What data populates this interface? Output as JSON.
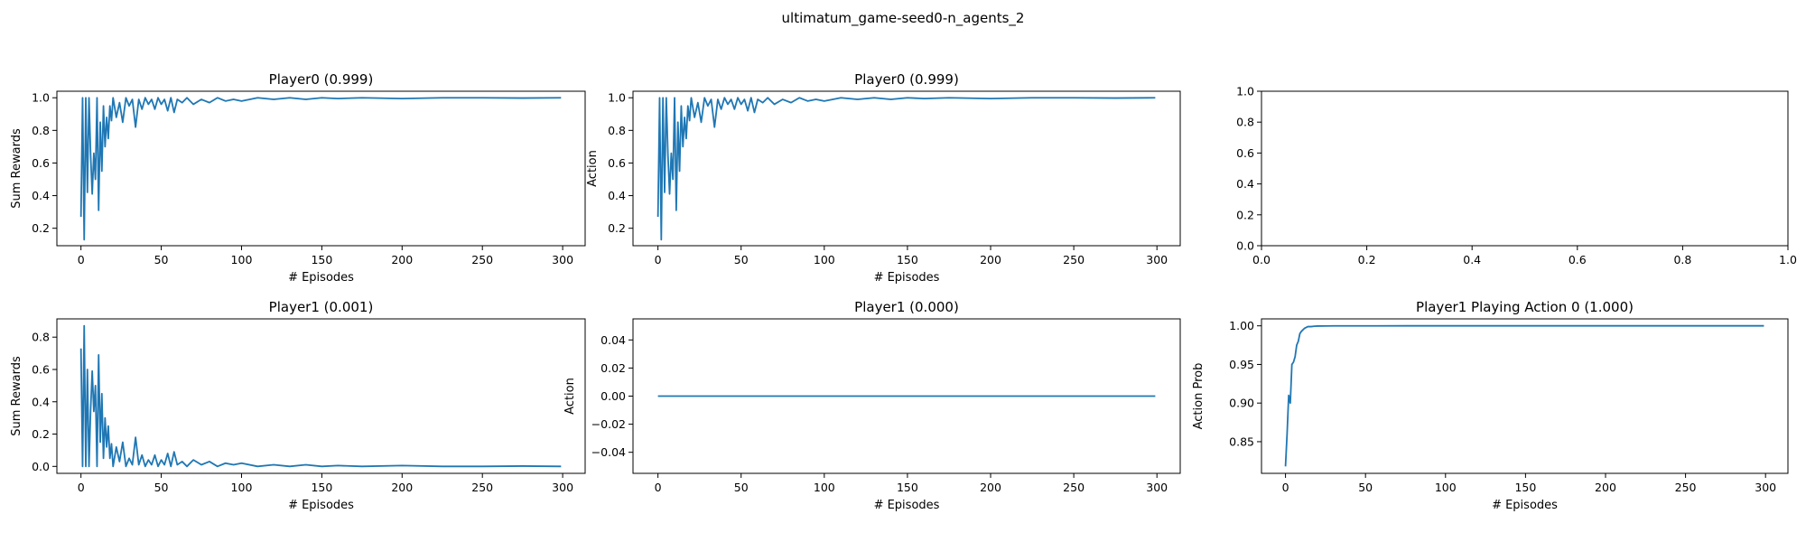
{
  "figure_title": "ultimatum_game-seed0-n_agents_2",
  "colors": {
    "series": "#1f77b4"
  },
  "chart_data": [
    {
      "id": "p0-rewards",
      "type": "line",
      "title": "Player0 (0.999)",
      "xlabel": "# Episodes",
      "ylabel": "Sum Rewards",
      "xlim": [
        -15,
        314
      ],
      "ylim": [
        0.093,
        1.04
      ],
      "xticks": [
        0,
        50,
        100,
        150,
        200,
        250,
        300
      ],
      "yticks": [
        0.2,
        0.4,
        0.6,
        0.8,
        1.0
      ],
      "ytick_labels": [
        "0.2",
        "0.4",
        "0.6",
        "0.8",
        "1.0"
      ],
      "grid": false,
      "series": [
        {
          "x": [
            0,
            1,
            2,
            3,
            4,
            5,
            6,
            7,
            8,
            9,
            10,
            11,
            12,
            13,
            14,
            15,
            16,
            17,
            18,
            19,
            20,
            22,
            24,
            26,
            28,
            30,
            32,
            34,
            36,
            38,
            40,
            42,
            44,
            46,
            48,
            50,
            52,
            54,
            56,
            58,
            60,
            63,
            66,
            70,
            75,
            80,
            85,
            90,
            95,
            100,
            110,
            120,
            130,
            140,
            150,
            160,
            175,
            200,
            225,
            250,
            275,
            299
          ],
          "y": [
            0.27,
            1.0,
            0.13,
            1.0,
            0.42,
            1.0,
            0.65,
            0.41,
            0.66,
            0.5,
            1.0,
            0.31,
            0.85,
            0.55,
            0.95,
            0.7,
            0.88,
            0.75,
            0.95,
            0.86,
            1.0,
            0.88,
            0.97,
            0.85,
            1.0,
            0.95,
            0.99,
            0.82,
            0.99,
            0.93,
            1.0,
            0.96,
            0.99,
            0.93,
            1.0,
            0.96,
            0.99,
            0.92,
            1.0,
            0.91,
            0.99,
            0.97,
            1.0,
            0.96,
            0.99,
            0.97,
            1.0,
            0.98,
            0.99,
            0.98,
            1.0,
            0.99,
            1.0,
            0.99,
            1.0,
            0.995,
            1.0,
            0.995,
            1.0,
            1.0,
            0.998,
            1.0
          ]
        }
      ]
    },
    {
      "id": "p0-action",
      "type": "line",
      "title": "Player0 (0.999)",
      "xlabel": "# Episodes",
      "ylabel": "Action",
      "xlim": [
        -15,
        314
      ],
      "ylim": [
        0.093,
        1.04
      ],
      "xticks": [
        0,
        50,
        100,
        150,
        200,
        250,
        300
      ],
      "yticks": [
        0.2,
        0.4,
        0.6,
        0.8,
        1.0
      ],
      "ytick_labels": [
        "0.2",
        "0.4",
        "0.6",
        "0.8",
        "1.0"
      ],
      "grid": false,
      "series": [
        {
          "x": [
            0,
            1,
            2,
            3,
            4,
            5,
            6,
            7,
            8,
            9,
            10,
            11,
            12,
            13,
            14,
            15,
            16,
            17,
            18,
            19,
            20,
            22,
            24,
            26,
            28,
            30,
            32,
            34,
            36,
            38,
            40,
            42,
            44,
            46,
            48,
            50,
            52,
            54,
            56,
            58,
            60,
            63,
            66,
            70,
            75,
            80,
            85,
            90,
            95,
            100,
            110,
            120,
            130,
            140,
            150,
            160,
            175,
            200,
            225,
            250,
            275,
            299
          ],
          "y": [
            0.27,
            1.0,
            0.13,
            1.0,
            0.42,
            1.0,
            0.65,
            0.41,
            0.66,
            0.5,
            1.0,
            0.31,
            0.85,
            0.55,
            0.95,
            0.7,
            0.88,
            0.75,
            0.95,
            0.86,
            1.0,
            0.88,
            0.97,
            0.85,
            1.0,
            0.95,
            0.99,
            0.82,
            0.99,
            0.93,
            1.0,
            0.96,
            0.99,
            0.93,
            1.0,
            0.96,
            0.99,
            0.92,
            1.0,
            0.91,
            0.99,
            0.97,
            1.0,
            0.96,
            0.99,
            0.97,
            1.0,
            0.98,
            0.99,
            0.98,
            1.0,
            0.99,
            1.0,
            0.99,
            1.0,
            0.995,
            1.0,
            0.995,
            1.0,
            1.0,
            0.998,
            1.0
          ]
        }
      ]
    },
    {
      "id": "empty",
      "type": "line",
      "title": "",
      "xlabel": "",
      "ylabel": "",
      "xlim": [
        0,
        1
      ],
      "ylim": [
        0,
        1
      ],
      "xticks": [
        0,
        0.2,
        0.4,
        0.6,
        0.8,
        1.0
      ],
      "xtick_labels": [
        "0.0",
        "0.2",
        "0.4",
        "0.6",
        "0.8",
        "1.0"
      ],
      "yticks": [
        0,
        0.2,
        0.4,
        0.6,
        0.8,
        1.0
      ],
      "ytick_labels": [
        "0.0",
        "0.2",
        "0.4",
        "0.6",
        "0.8",
        "1.0"
      ],
      "grid": false,
      "series": []
    },
    {
      "id": "p1-rewards",
      "type": "line",
      "title": "Player1 (0.001)",
      "xlabel": "# Episodes",
      "ylabel": "Sum Rewards",
      "xlim": [
        -15,
        314
      ],
      "ylim": [
        -0.043,
        0.913
      ],
      "xticks": [
        0,
        50,
        100,
        150,
        200,
        250,
        300
      ],
      "yticks": [
        0.0,
        0.2,
        0.4,
        0.6,
        0.8
      ],
      "ytick_labels": [
        "0.0",
        "0.2",
        "0.4",
        "0.6",
        "0.8"
      ],
      "grid": false,
      "series": [
        {
          "x": [
            0,
            1,
            2,
            3,
            4,
            5,
            6,
            7,
            8,
            9,
            10,
            11,
            12,
            13,
            14,
            15,
            16,
            17,
            18,
            19,
            20,
            22,
            24,
            26,
            28,
            30,
            32,
            34,
            36,
            38,
            40,
            42,
            44,
            46,
            48,
            50,
            52,
            54,
            56,
            58,
            60,
            63,
            66,
            70,
            75,
            80,
            85,
            90,
            95,
            100,
            110,
            120,
            130,
            140,
            150,
            160,
            175,
            200,
            225,
            250,
            275,
            299
          ],
          "y": [
            0.73,
            0.0,
            0.87,
            0.0,
            0.6,
            0.0,
            0.35,
            0.59,
            0.34,
            0.5,
            0.0,
            0.69,
            0.15,
            0.45,
            0.05,
            0.3,
            0.12,
            0.25,
            0.05,
            0.14,
            0.0,
            0.12,
            0.03,
            0.15,
            0.0,
            0.05,
            0.01,
            0.18,
            0.01,
            0.07,
            0.0,
            0.04,
            0.01,
            0.07,
            0.0,
            0.04,
            0.01,
            0.08,
            0.0,
            0.09,
            0.01,
            0.03,
            0.0,
            0.04,
            0.01,
            0.03,
            0.0,
            0.02,
            0.01,
            0.02,
            0.0,
            0.01,
            0.0,
            0.01,
            0.0,
            0.005,
            0.0,
            0.005,
            0.0,
            0.0,
            0.002,
            0.0
          ]
        }
      ]
    },
    {
      "id": "p1-action",
      "type": "line",
      "title": "Player1 (0.000)",
      "xlabel": "# Episodes",
      "ylabel": "Action",
      "xlim": [
        -15,
        314
      ],
      "ylim": [
        -0.055,
        0.055
      ],
      "xticks": [
        0,
        50,
        100,
        150,
        200,
        250,
        300
      ],
      "yticks": [
        -0.04,
        -0.02,
        0.0,
        0.02,
        0.04
      ],
      "ytick_labels": [
        "−0.04",
        "−0.02",
        "0.00",
        "0.02",
        "0.04"
      ],
      "grid": false,
      "series": [
        {
          "x": [
            0,
            299
          ],
          "y": [
            0.0,
            0.0
          ]
        }
      ]
    },
    {
      "id": "p1-prob",
      "type": "line",
      "title": "Player1 Playing Action 0 (1.000)",
      "xlabel": "# Episodes",
      "ylabel": "Action Prob",
      "xlim": [
        -15,
        314
      ],
      "ylim": [
        0.809,
        1.009
      ],
      "xticks": [
        0,
        50,
        100,
        150,
        200,
        250,
        300
      ],
      "yticks": [
        0.85,
        0.9,
        0.95,
        1.0
      ],
      "ytick_labels": [
        "0.85",
        "0.90",
        "0.95",
        "1.00"
      ],
      "grid": false,
      "series": [
        {
          "x": [
            0,
            1,
            2,
            3,
            4,
            5,
            6,
            7,
            8,
            9,
            10,
            12,
            14,
            16,
            18,
            20,
            25,
            30,
            40,
            50,
            75,
            100,
            150,
            200,
            250,
            299
          ],
          "y": [
            0.818,
            0.86,
            0.91,
            0.9,
            0.95,
            0.953,
            0.96,
            0.975,
            0.98,
            0.99,
            0.993,
            0.997,
            0.999,
            0.999,
            0.9995,
            0.9997,
            0.9998,
            0.9999,
            0.9999,
            0.99995,
            1.0,
            1.0,
            1.0,
            1.0,
            1.0,
            1.0
          ]
        }
      ]
    }
  ]
}
